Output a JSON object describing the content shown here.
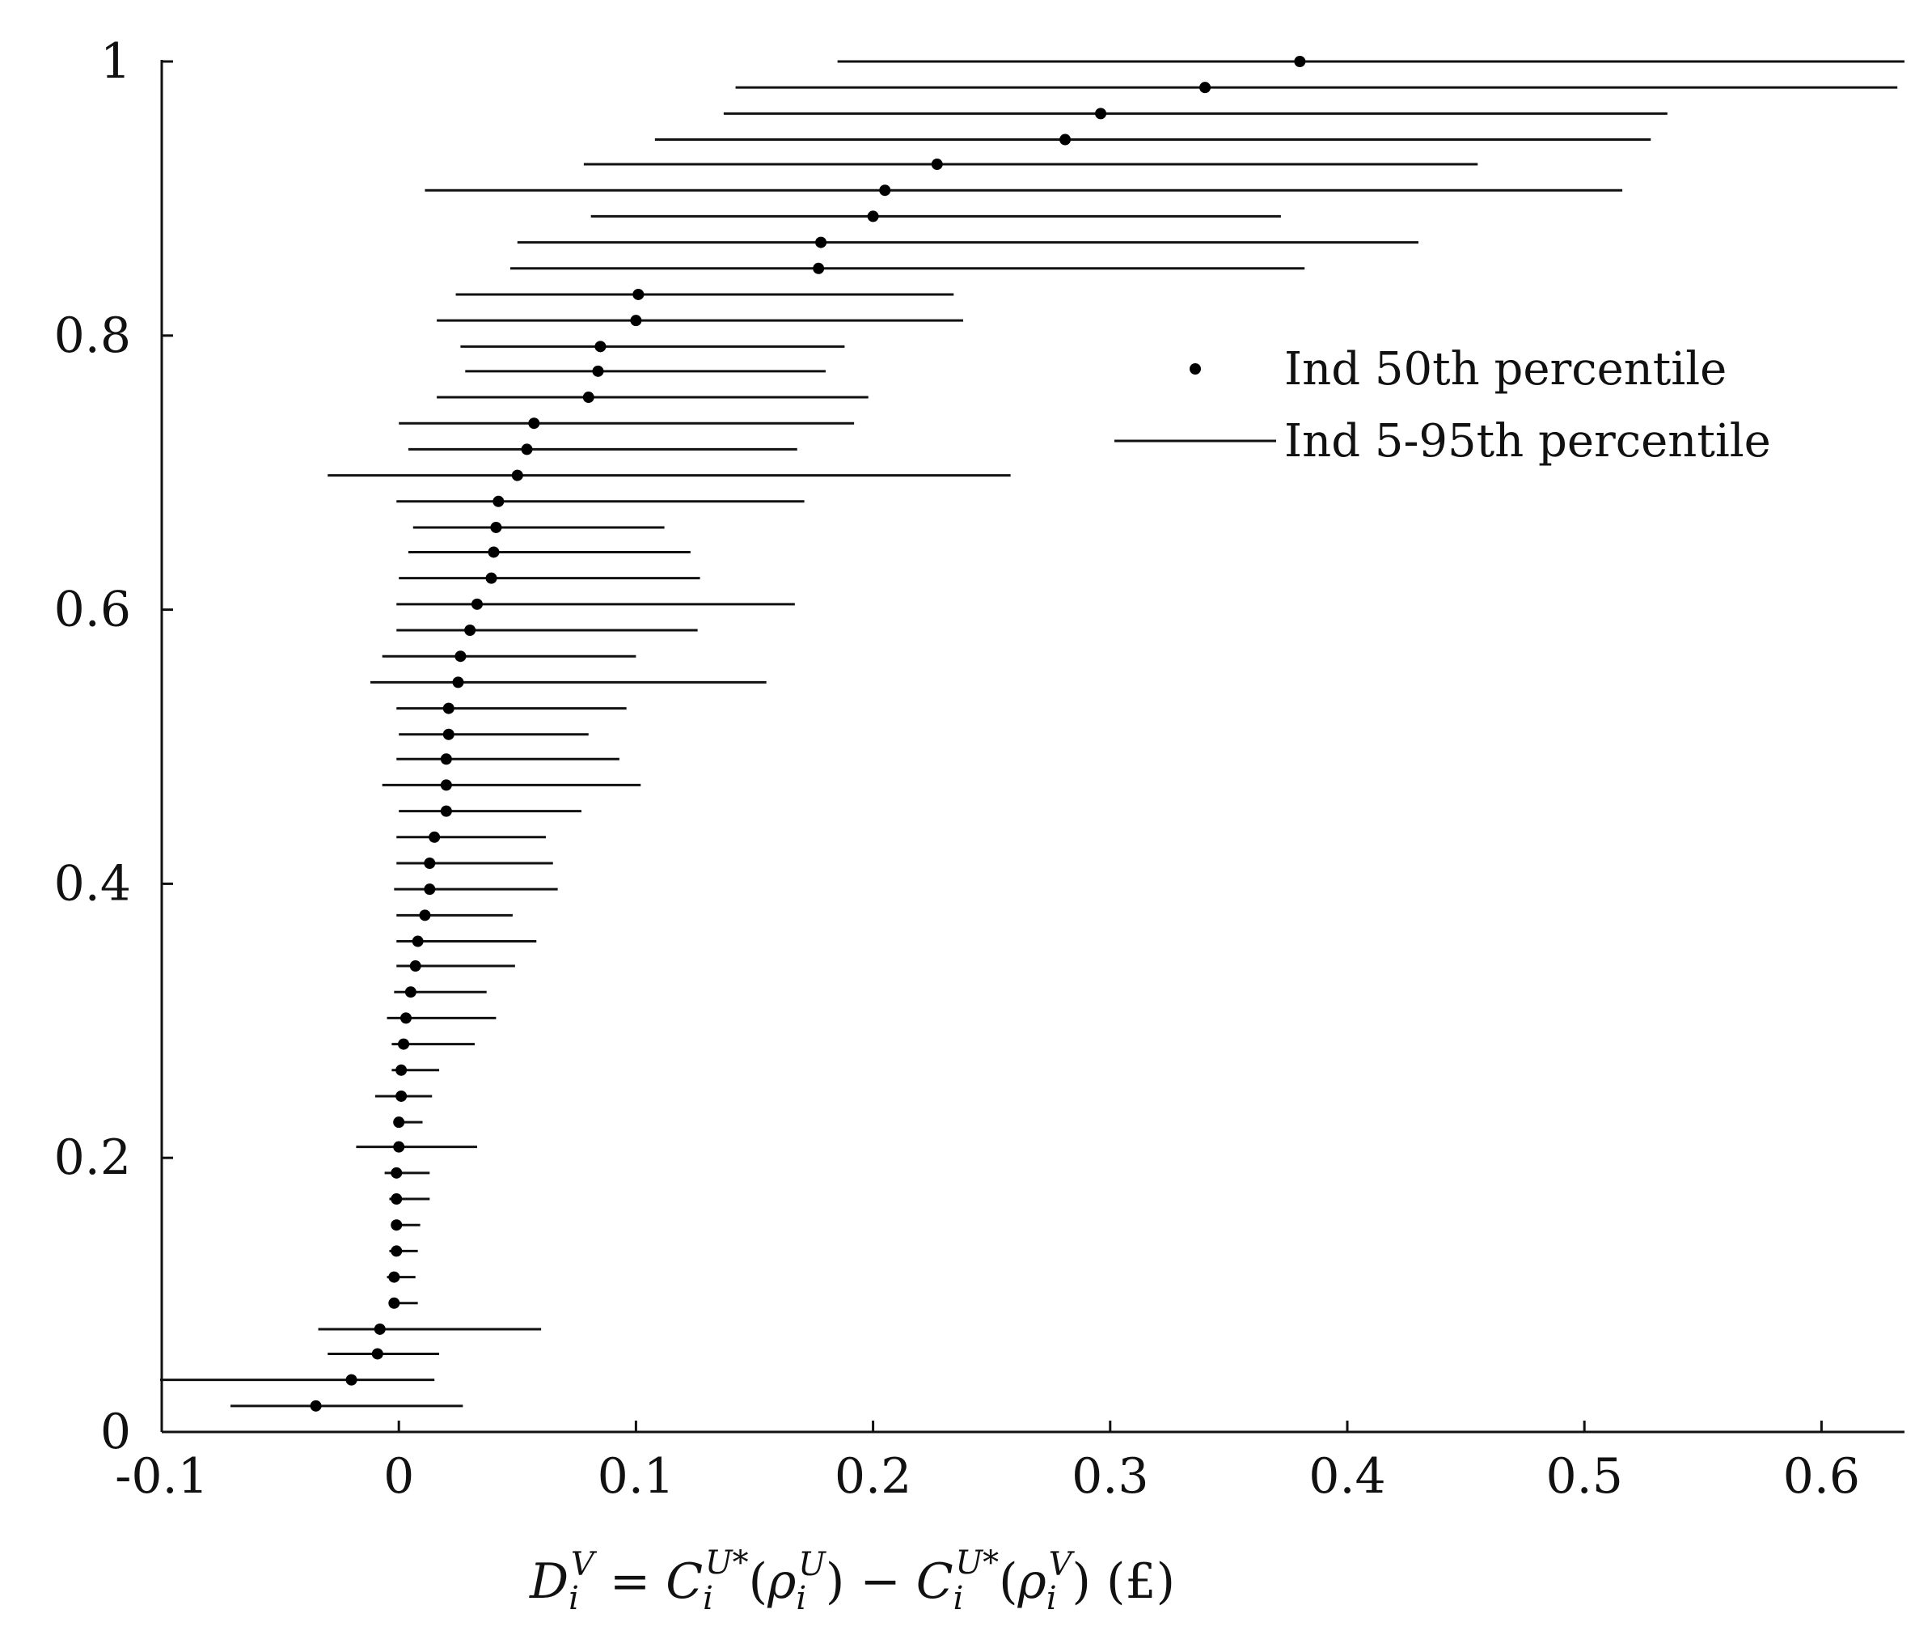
{
  "chart_data": {
    "type": "scatter",
    "title": "",
    "xlabel": "D_i^V = C_i^{U*}(ρ_i^U) − C_i^{U*}(ρ_i^V)     (£)",
    "ylabel": "",
    "xlim": [
      -0.1,
      0.635
    ],
    "ylim": [
      0,
      1
    ],
    "x_ticks": [
      "-0.1",
      "0",
      "0.1",
      "0.2",
      "0.3",
      "0.4",
      "0.5",
      "0.6"
    ],
    "y_ticks": [
      "0",
      "0.2",
      "0.4",
      "0.6",
      "0.8",
      "1"
    ],
    "x_tick_values": [
      -0.1,
      0,
      0.1,
      0.2,
      0.3,
      0.4,
      0.5,
      0.6
    ],
    "y_tick_values": [
      0,
      0.2,
      0.4,
      0.6,
      0.8,
      1.0
    ],
    "grid": false,
    "legend_position": "upper-right",
    "legend": [
      {
        "marker": "dot",
        "label": "Ind 50th percentile"
      },
      {
        "marker": "line",
        "label": "Ind 5-95th percentile"
      }
    ],
    "series": [
      {
        "name": "Ind 50th percentile / Ind 5-95th percentile",
        "points": [
          {
            "y": 0.019,
            "median": -0.035,
            "low": -0.071,
            "high": 0.027
          },
          {
            "y": 0.038,
            "median": -0.02,
            "low": -0.101,
            "high": 0.015
          },
          {
            "y": 0.057,
            "median": -0.009,
            "low": -0.03,
            "high": 0.017
          },
          {
            "y": 0.075,
            "median": -0.008,
            "low": -0.034,
            "high": 0.06
          },
          {
            "y": 0.094,
            "median": -0.002,
            "low": -0.004,
            "high": 0.008
          },
          {
            "y": 0.113,
            "median": -0.002,
            "low": -0.005,
            "high": 0.007
          },
          {
            "y": 0.132,
            "median": -0.001,
            "low": -0.004,
            "high": 0.008
          },
          {
            "y": 0.151,
            "median": -0.001,
            "low": -0.003,
            "high": 0.009
          },
          {
            "y": 0.17,
            "median": -0.001,
            "low": -0.004,
            "high": 0.013
          },
          {
            "y": 0.189,
            "median": -0.001,
            "low": -0.006,
            "high": 0.013
          },
          {
            "y": 0.208,
            "median": 0.0,
            "low": -0.018,
            "high": 0.033
          },
          {
            "y": 0.226,
            "median": 0.0,
            "low": -0.002,
            "high": 0.01
          },
          {
            "y": 0.245,
            "median": 0.001,
            "low": -0.01,
            "high": 0.014
          },
          {
            "y": 0.264,
            "median": 0.001,
            "low": -0.003,
            "high": 0.017
          },
          {
            "y": 0.283,
            "median": 0.002,
            "low": -0.003,
            "high": 0.032
          },
          {
            "y": 0.302,
            "median": 0.003,
            "low": -0.005,
            "high": 0.041
          },
          {
            "y": 0.321,
            "median": 0.005,
            "low": -0.002,
            "high": 0.037
          },
          {
            "y": 0.34,
            "median": 0.007,
            "low": -0.001,
            "high": 0.049
          },
          {
            "y": 0.358,
            "median": 0.008,
            "low": -0.001,
            "high": 0.058
          },
          {
            "y": 0.377,
            "median": 0.011,
            "low": -0.001,
            "high": 0.048
          },
          {
            "y": 0.396,
            "median": 0.013,
            "low": -0.002,
            "high": 0.067
          },
          {
            "y": 0.415,
            "median": 0.013,
            "low": -0.001,
            "high": 0.065
          },
          {
            "y": 0.434,
            "median": 0.015,
            "low": -0.001,
            "high": 0.062
          },
          {
            "y": 0.453,
            "median": 0.02,
            "low": 0.0,
            "high": 0.077
          },
          {
            "y": 0.472,
            "median": 0.02,
            "low": -0.007,
            "high": 0.102
          },
          {
            "y": 0.491,
            "median": 0.02,
            "low": -0.001,
            "high": 0.093
          },
          {
            "y": 0.509,
            "median": 0.021,
            "low": 0.0,
            "high": 0.08
          },
          {
            "y": 0.528,
            "median": 0.021,
            "low": -0.001,
            "high": 0.096
          },
          {
            "y": 0.547,
            "median": 0.025,
            "low": -0.012,
            "high": 0.155
          },
          {
            "y": 0.566,
            "median": 0.026,
            "low": -0.007,
            "high": 0.1
          },
          {
            "y": 0.585,
            "median": 0.03,
            "low": -0.001,
            "high": 0.126
          },
          {
            "y": 0.604,
            "median": 0.033,
            "low": -0.001,
            "high": 0.167
          },
          {
            "y": 0.623,
            "median": 0.039,
            "low": 0.0,
            "high": 0.127
          },
          {
            "y": 0.642,
            "median": 0.04,
            "low": 0.004,
            "high": 0.123
          },
          {
            "y": 0.66,
            "median": 0.041,
            "low": 0.006,
            "high": 0.112
          },
          {
            "y": 0.679,
            "median": 0.042,
            "low": -0.001,
            "high": 0.171
          },
          {
            "y": 0.698,
            "median": 0.05,
            "low": -0.03,
            "high": 0.258
          },
          {
            "y": 0.717,
            "median": 0.054,
            "low": 0.004,
            "high": 0.168
          },
          {
            "y": 0.736,
            "median": 0.057,
            "low": 0.0,
            "high": 0.192
          },
          {
            "y": 0.755,
            "median": 0.08,
            "low": 0.016,
            "high": 0.198
          },
          {
            "y": 0.774,
            "median": 0.084,
            "low": 0.028,
            "high": 0.18
          },
          {
            "y": 0.792,
            "median": 0.085,
            "low": 0.026,
            "high": 0.188
          },
          {
            "y": 0.811,
            "median": 0.1,
            "low": 0.016,
            "high": 0.238
          },
          {
            "y": 0.83,
            "median": 0.101,
            "low": 0.024,
            "high": 0.234
          },
          {
            "y": 0.849,
            "median": 0.177,
            "low": 0.047,
            "high": 0.382
          },
          {
            "y": 0.868,
            "median": 0.178,
            "low": 0.05,
            "high": 0.43
          },
          {
            "y": 0.887,
            "median": 0.2,
            "low": 0.081,
            "high": 0.372
          },
          {
            "y": 0.906,
            "median": 0.205,
            "low": 0.011,
            "high": 0.516
          },
          {
            "y": 0.925,
            "median": 0.227,
            "low": 0.078,
            "high": 0.455
          },
          {
            "y": 0.943,
            "median": 0.281,
            "low": 0.108,
            "high": 0.528
          },
          {
            "y": 0.962,
            "median": 0.296,
            "low": 0.137,
            "high": 0.535
          },
          {
            "y": 0.981,
            "median": 0.34,
            "low": 0.142,
            "high": 0.632
          },
          {
            "y": 1.0,
            "median": 0.38,
            "low": 0.185,
            "high": 0.637
          }
        ]
      }
    ]
  }
}
